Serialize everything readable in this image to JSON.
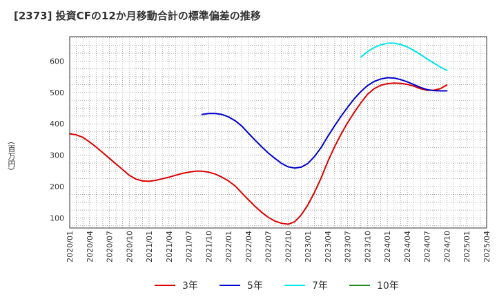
{
  "header": {
    "title": "[2373]  投資CFの12か月移動合計の標準偏差の推移"
  },
  "chart_data": {
    "type": "line",
    "title": "[2373]  投資CFの12か月移動合計の標準偏差の推移",
    "ylabel": "(百万円)",
    "xlabel": "",
    "ylim": [
      68,
      678
    ],
    "yticks": [
      100,
      200,
      300,
      400,
      500,
      600
    ],
    "xlim": [
      "2020-01",
      "2025-04"
    ],
    "xticks": [
      "2020/01",
      "2020/04",
      "2020/07",
      "2020/10",
      "2021/01",
      "2021/04",
      "2021/07",
      "2021/10",
      "2022/01",
      "2022/04",
      "2022/07",
      "2022/10",
      "2023/01",
      "2023/04",
      "2023/07",
      "2023/10",
      "2024/01",
      "2024/04",
      "2024/07",
      "2024/10",
      "2025/01",
      "2025/04"
    ],
    "grid": true,
    "legend_position": "bottom",
    "series": [
      {
        "name": "3年",
        "color": "#dd0000",
        "x": [
          "2020-01",
          "2020-02",
          "2020-03",
          "2020-04",
          "2020-05",
          "2020-06",
          "2020-07",
          "2020-08",
          "2020-09",
          "2020-10",
          "2020-11",
          "2020-12",
          "2021-01",
          "2021-02",
          "2021-03",
          "2021-04",
          "2021-05",
          "2021-06",
          "2021-07",
          "2021-08",
          "2021-09",
          "2021-10",
          "2021-11",
          "2021-12",
          "2022-01",
          "2022-02",
          "2022-03",
          "2022-04",
          "2022-05",
          "2022-06",
          "2022-07",
          "2022-08",
          "2022-09",
          "2022-10",
          "2022-11",
          "2022-12",
          "2023-01",
          "2023-02",
          "2023-03",
          "2023-04",
          "2023-05",
          "2023-06",
          "2023-07",
          "2023-08",
          "2023-09",
          "2023-10",
          "2023-11",
          "2023-12",
          "2024-01",
          "2024-02",
          "2024-03",
          "2024-04",
          "2024-05",
          "2024-06",
          "2024-07",
          "2024-08",
          "2024-09",
          "2024-10"
        ],
        "values": [
          368,
          365,
          357,
          342,
          326,
          308,
          290,
          272,
          254,
          236,
          224,
          218,
          217,
          220,
          225,
          230,
          236,
          242,
          246,
          249,
          249,
          246,
          240,
          230,
          218,
          202,
          180,
          158,
          137,
          118,
          102,
          90,
          83,
          80,
          88,
          110,
          142,
          182,
          228,
          280,
          326,
          367,
          404,
          437,
          467,
          494,
          512,
          523,
          528,
          530,
          529,
          526,
          520,
          512,
          507,
          507,
          512,
          524
        ]
      },
      {
        "name": "5年",
        "color": "#0000cc",
        "x": [
          "2021-09",
          "2021-10",
          "2021-11",
          "2021-12",
          "2022-01",
          "2022-02",
          "2022-03",
          "2022-04",
          "2022-05",
          "2022-06",
          "2022-07",
          "2022-08",
          "2022-09",
          "2022-10",
          "2022-11",
          "2022-12",
          "2023-01",
          "2023-02",
          "2023-03",
          "2023-04",
          "2023-05",
          "2023-06",
          "2023-07",
          "2023-08",
          "2023-09",
          "2023-10",
          "2023-11",
          "2023-12",
          "2024-01",
          "2024-02",
          "2024-03",
          "2024-04",
          "2024-05",
          "2024-06",
          "2024-07",
          "2024-08",
          "2024-09",
          "2024-10"
        ],
        "values": [
          430,
          433,
          433,
          430,
          422,
          410,
          393,
          370,
          348,
          327,
          307,
          290,
          274,
          263,
          259,
          262,
          274,
          296,
          325,
          360,
          393,
          424,
          453,
          480,
          503,
          522,
          535,
          543,
          547,
          546,
          541,
          534,
          525,
          516,
          509,
          506,
          505,
          505
        ]
      },
      {
        "name": "7年",
        "color": "#00e5ee",
        "x": [
          "2023-09",
          "2023-10",
          "2023-11",
          "2023-12",
          "2024-01",
          "2024-02",
          "2024-03",
          "2024-04",
          "2024-05",
          "2024-06",
          "2024-07",
          "2024-08",
          "2024-09",
          "2024-10"
        ],
        "values": [
          613,
          630,
          643,
          652,
          657,
          657,
          653,
          645,
          634,
          621,
          607,
          594,
          581,
          570
        ]
      },
      {
        "name": "10年",
        "color": "#228b22",
        "x": [],
        "values": []
      }
    ]
  }
}
